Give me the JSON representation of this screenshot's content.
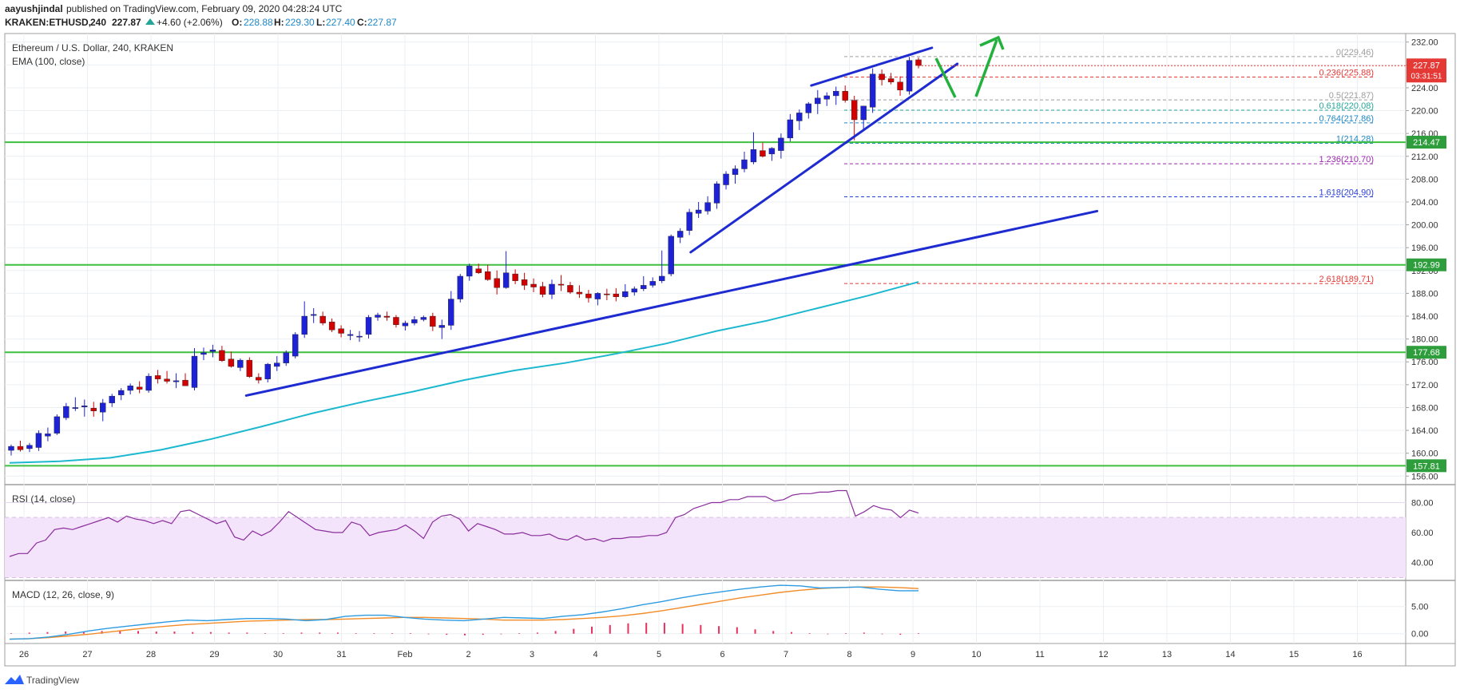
{
  "header": {
    "author": "aayushjindal",
    "published_text": "published on TradingView.com, February 09, 2020 04:28:24 UTC",
    "symbol": "KRAKEN:ETHUSD,",
    "timeframe": "240",
    "price": "227.87",
    "change": "+4.60 (+2.06%)",
    "o_label": "O:",
    "o_value": "228.88",
    "h_label": "H:",
    "h_value": "229.30",
    "l_label": "L:",
    "l_value": "227.40",
    "c_label": "C:",
    "c_value": "227.87"
  },
  "legend": {
    "title": "Ethereum / U.S. Dollar, 240, KRAKEN",
    "ema": "EMA (100, close)",
    "rsi": "RSI (14, close)",
    "macd": "MACD (12, 26, close, 9)"
  },
  "footer": {
    "brand": "TradingView"
  },
  "colors": {
    "up": "#1e22d6",
    "down": "#d40000",
    "ema": "#1bb8cf",
    "support": "#3fbf3f",
    "trend": "#1e2bd1",
    "arrow": "#20b03a",
    "rsi": "#8a2e9c",
    "rsi_band": "#f2e0fa",
    "macd": "#2e9be0",
    "signal": "#f28c28",
    "hist": "#e8305e"
  },
  "chart_data": [
    {
      "type": "candlestick",
      "title": "Ethereum / U.S. Dollar, 240, KRAKEN",
      "x_tick_labels": [
        "26",
        "27",
        "28",
        "29",
        "30",
        "31",
        "Feb",
        "2",
        "3",
        "4",
        "5",
        "6",
        "7",
        "8",
        "9",
        "10",
        "11",
        "12",
        "13",
        "14",
        "15",
        "16"
      ],
      "y_tick_labels": [
        "156.00",
        "160.00",
        "164.00",
        "168.00",
        "172.00",
        "176.00",
        "180.00",
        "184.00",
        "188.00",
        "192.00",
        "196.00",
        "200.00",
        "204.00",
        "208.00",
        "212.00",
        "216.00",
        "220.00",
        "224.00",
        "228.00",
        "232.00"
      ],
      "ylim": [
        154.5,
        233.5
      ],
      "candles_ohlc": [
        [
          160.5,
          161.5,
          159.6,
          161.2
        ],
        [
          161.2,
          162.2,
          160.3,
          160.6
        ],
        [
          160.8,
          161.8,
          160.2,
          161.4
        ],
        [
          161.0,
          164.0,
          160.4,
          163.5
        ],
        [
          163.0,
          164.5,
          162.1,
          163.4
        ],
        [
          163.5,
          166.8,
          163.2,
          166.4
        ],
        [
          166.2,
          168.8,
          165.8,
          168.2
        ],
        [
          168.0,
          169.8,
          167.4,
          168.0
        ],
        [
          168.1,
          169.4,
          166.4,
          168.3
        ],
        [
          167.9,
          169.0,
          166.4,
          167.4
        ],
        [
          167.2,
          169.5,
          165.6,
          168.8
        ],
        [
          168.8,
          170.4,
          168.1,
          170.0
        ],
        [
          170.2,
          171.4,
          169.3,
          171.0
        ],
        [
          171.0,
          172.2,
          170.3,
          171.8
        ],
        [
          171.6,
          172.6,
          170.5,
          171.2
        ],
        [
          171.0,
          174.0,
          170.6,
          173.5
        ],
        [
          173.6,
          174.6,
          172.2,
          173.0
        ],
        [
          173.0,
          174.4,
          172.2,
          172.6
        ],
        [
          172.5,
          174.0,
          171.4,
          172.7
        ],
        [
          172.8,
          174.0,
          171.8,
          171.8
        ],
        [
          171.5,
          178.4,
          171.0,
          177.0
        ],
        [
          177.3,
          178.5,
          176.3,
          177.6
        ],
        [
          177.8,
          179.0,
          176.8,
          178.1
        ],
        [
          178.0,
          178.8,
          176.0,
          176.2
        ],
        [
          176.5,
          177.8,
          175.0,
          175.2
        ],
        [
          175.0,
          176.6,
          174.4,
          176.3
        ],
        [
          176.3,
          176.8,
          173.2,
          173.4
        ],
        [
          173.3,
          174.0,
          172.2,
          172.8
        ],
        [
          173.0,
          175.8,
          172.4,
          175.6
        ],
        [
          175.2,
          177.0,
          174.4,
          175.8
        ],
        [
          175.8,
          178.0,
          175.3,
          177.6
        ],
        [
          177.0,
          181.2,
          176.6,
          180.8
        ],
        [
          180.8,
          186.6,
          180.2,
          184.0
        ],
        [
          184.2,
          185.4,
          182.8,
          184.3
        ],
        [
          184.0,
          184.8,
          182.4,
          182.8
        ],
        [
          183.0,
          183.6,
          181.2,
          181.6
        ],
        [
          181.8,
          182.4,
          180.3,
          181.0
        ],
        [
          180.6,
          181.6,
          179.8,
          180.8
        ],
        [
          180.4,
          181.4,
          179.5,
          180.5
        ],
        [
          180.8,
          184.2,
          180.1,
          183.8
        ],
        [
          183.8,
          184.6,
          183.2,
          184.2
        ],
        [
          184.0,
          184.8,
          183.2,
          183.8
        ],
        [
          183.8,
          184.2,
          182.0,
          182.5
        ],
        [
          182.3,
          183.2,
          181.5,
          182.8
        ],
        [
          182.8,
          184.0,
          182.4,
          183.4
        ],
        [
          183.4,
          184.1,
          183.1,
          183.8
        ],
        [
          184.0,
          184.6,
          181.4,
          182.2
        ],
        [
          182.0,
          183.4,
          180.0,
          182.4
        ],
        [
          182.4,
          188.4,
          181.6,
          187.0
        ],
        [
          187.0,
          191.4,
          186.4,
          191.0
        ],
        [
          191.0,
          193.2,
          190.2,
          192.8
        ],
        [
          192.3,
          193.2,
          191.4,
          191.6
        ],
        [
          191.8,
          193.0,
          190.2,
          190.4
        ],
        [
          190.6,
          192.0,
          187.8,
          189.0
        ],
        [
          189.0,
          195.4,
          188.8,
          191.6
        ],
        [
          191.4,
          192.2,
          189.6,
          190.2
        ],
        [
          190.4,
          191.6,
          188.6,
          189.4
        ],
        [
          189.6,
          190.6,
          188.2,
          189.1
        ],
        [
          189.2,
          190.0,
          187.3,
          187.8
        ],
        [
          187.8,
          190.4,
          187.0,
          189.6
        ],
        [
          189.6,
          191.2,
          188.4,
          189.5
        ],
        [
          189.4,
          190.0,
          187.9,
          188.2
        ],
        [
          188.2,
          189.4,
          187.2,
          187.9
        ],
        [
          187.9,
          188.6,
          186.4,
          187.2
        ],
        [
          187.0,
          188.2,
          185.9,
          188.0
        ],
        [
          187.9,
          188.8,
          186.8,
          187.8
        ],
        [
          187.9,
          188.9,
          186.6,
          187.4
        ],
        [
          187.4,
          189.6,
          187.2,
          188.3
        ],
        [
          188.2,
          189.2,
          187.6,
          188.8
        ],
        [
          188.8,
          191.0,
          188.4,
          189.4
        ],
        [
          189.4,
          190.8,
          189.0,
          190.1
        ],
        [
          190.2,
          195.5,
          189.8,
          191.0
        ],
        [
          191.4,
          198.3,
          191.0,
          198.0
        ],
        [
          197.8,
          199.4,
          196.8,
          198.9
        ],
        [
          199.0,
          202.8,
          198.2,
          202.2
        ],
        [
          202.0,
          204.0,
          201.2,
          202.6
        ],
        [
          202.4,
          205.0,
          201.8,
          203.9
        ],
        [
          203.8,
          207.6,
          202.8,
          207.2
        ],
        [
          207.0,
          209.4,
          206.2,
          208.9
        ],
        [
          208.8,
          210.4,
          207.2,
          209.8
        ],
        [
          209.8,
          212.8,
          209.2,
          211.4
        ],
        [
          211.0,
          216.2,
          210.6,
          213.2
        ],
        [
          213.0,
          214.4,
          211.8,
          212.0
        ],
        [
          212.4,
          213.6,
          211.2,
          213.4
        ],
        [
          213.0,
          216.0,
          211.6,
          215.2
        ],
        [
          215.2,
          219.4,
          214.6,
          218.4
        ],
        [
          218.2,
          220.2,
          216.6,
          219.6
        ],
        [
          219.6,
          221.5,
          218.6,
          221.2
        ],
        [
          221.2,
          223.6,
          219.4,
          222.2
        ],
        [
          222.0,
          223.2,
          220.8,
          222.6
        ],
        [
          222.6,
          224.2,
          221.0,
          223.4
        ],
        [
          223.4,
          224.4,
          221.4,
          221.8
        ],
        [
          221.8,
          222.6,
          214.8,
          218.4
        ],
        [
          218.4,
          220.8,
          216.4,
          220.8
        ],
        [
          220.6,
          227.4,
          219.6,
          226.4
        ],
        [
          226.4,
          227.2,
          224.4,
          225.4
        ],
        [
          225.6,
          226.6,
          224.6,
          225.0
        ],
        [
          225.0,
          226.0,
          222.6,
          223.6
        ],
        [
          223.4,
          229.4,
          222.8,
          228.8
        ],
        [
          228.9,
          229.3,
          227.4,
          227.9
        ]
      ],
      "ema_100": [
        158.3,
        158.6,
        159.2,
        160.6,
        162.5,
        164.7,
        167.0,
        169.0,
        170.8,
        172.8,
        174.5,
        175.8,
        177.4,
        179.2,
        181.4,
        183.2,
        185.4,
        187.6,
        190.0
      ],
      "horizontal_levels": [
        {
          "value": 214.47,
          "label": "214.47"
        },
        {
          "value": 192.99,
          "label": "192.99"
        },
        {
          "value": 177.68,
          "label": "177.68"
        },
        {
          "value": 157.81,
          "label": "157.81"
        }
      ],
      "fibonacci": [
        {
          "ratio": "0",
          "price": "229.46",
          "text": "0(229.46)"
        },
        {
          "ratio": "0.236",
          "price": "225.88",
          "text": "0.236(225.88)"
        },
        {
          "ratio": "0.5",
          "price": "221.87",
          "text": "0.5(221.87)"
        },
        {
          "ratio": "0.618",
          "price": "220.08",
          "text": "0.618(220.08)"
        },
        {
          "ratio": "0.764",
          "price": "217.86",
          "text": "0.764(217.86)"
        },
        {
          "ratio": "1",
          "price": "214.28",
          "text": "1(214.28)"
        },
        {
          "ratio": "1.236",
          "price": "210.70",
          "text": "1.236(210.70)"
        },
        {
          "ratio": "1.618",
          "price": "204.90",
          "text": "1.618(204.90)"
        },
        {
          "ratio": "2.618",
          "price": "189.71",
          "text": "2.618(189.71)"
        }
      ],
      "trendlines": [
        {
          "name": "major-support",
          "from": [
            "Jan 29.5",
            170.1
          ],
          "to": [
            "Feb 11.9",
            202.4
          ]
        },
        {
          "name": "rising-support",
          "from": [
            "Feb 5.5",
            195.2
          ],
          "to": [
            "Feb 9.7",
            228.2
          ]
        },
        {
          "name": "rising-resistance",
          "from": [
            "Feb 7.4",
            224.4
          ],
          "to": [
            "Feb 9.3",
            231.0
          ]
        }
      ],
      "last_price": "227.87",
      "countdown": "03:31:51"
    },
    {
      "type": "line",
      "title": "RSI (14, close)",
      "y_tick_labels": [
        "40.00",
        "60.00",
        "80.00"
      ],
      "ylim": [
        28,
        92
      ],
      "band": [
        30,
        70
      ],
      "values": [
        44,
        46,
        46,
        53,
        55,
        62,
        63,
        62,
        64,
        66,
        68,
        70,
        67,
        71,
        69,
        68,
        66,
        68,
        66,
        74,
        75,
        72,
        69,
        66,
        68,
        57,
        55,
        61,
        58,
        61,
        67,
        74,
        70,
        66,
        62,
        61,
        60,
        60,
        67,
        65,
        58,
        60,
        61,
        62,
        65,
        61,
        56,
        67,
        71,
        72,
        69,
        61,
        66,
        64,
        62,
        59,
        59,
        60,
        58,
        58,
        59,
        56,
        55,
        58,
        55,
        56,
        54,
        56,
        56,
        57,
        57,
        58,
        58,
        60,
        70,
        72,
        76,
        78,
        80,
        80,
        82,
        82,
        84,
        84,
        84,
        81,
        82,
        85,
        86,
        86,
        87,
        87,
        88,
        88,
        71,
        74,
        78,
        76,
        75,
        70,
        75,
        73
      ]
    },
    {
      "type": "line",
      "title": "MACD (12, 26, close, 9)",
      "y_tick_labels": [
        "0.00",
        "5.00"
      ],
      "ylim": [
        -1.8,
        9.8
      ],
      "macd": [
        -1.0,
        -0.9,
        -0.6,
        -0.1,
        0.5,
        1.0,
        1.4,
        1.8,
        2.2,
        2.5,
        2.4,
        2.6,
        2.8,
        2.8,
        2.7,
        2.4,
        2.6,
        3.2,
        3.4,
        3.4,
        3.0,
        2.7,
        2.5,
        2.4,
        2.7,
        3.0,
        2.9,
        2.8,
        3.2,
        3.5,
        4.0,
        4.6,
        5.3,
        5.9,
        6.6,
        7.2,
        7.7,
        8.2,
        8.6,
        8.9,
        8.8,
        8.4,
        8.5,
        8.6,
        8.2,
        7.9,
        7.9
      ],
      "signal": [
        -1.0,
        -0.9,
        -0.7,
        -0.4,
        -0.1,
        0.3,
        0.7,
        1.1,
        1.4,
        1.7,
        1.9,
        2.1,
        2.3,
        2.4,
        2.5,
        2.6,
        2.6,
        2.7,
        2.8,
        2.9,
        3.0,
        3.0,
        2.9,
        2.8,
        2.7,
        2.5,
        2.5,
        2.5,
        2.6,
        2.8,
        3.0,
        3.3,
        3.7,
        4.2,
        4.8,
        5.4,
        6.0,
        6.6,
        7.1,
        7.6,
        8.0,
        8.3,
        8.5,
        8.6,
        8.6,
        8.5,
        8.3
      ],
      "histogram": [
        0.1,
        0.2,
        0.3,
        0.4,
        0.4,
        0.5,
        0.5,
        0.5,
        0.4,
        0.4,
        0.3,
        0.3,
        0.2,
        0.2,
        0.1,
        0.1,
        0.2,
        0.2,
        0.2,
        0.1,
        0.1,
        0.1,
        0.1,
        -0.1,
        -0.2,
        -0.3,
        -0.2,
        -0.1,
        0.1,
        0.2,
        0.5,
        0.9,
        1.3,
        1.6,
        1.9,
        2.0,
        2.0,
        1.8,
        1.6,
        1.4,
        1.2,
        0.8,
        0.5,
        0.3,
        0.1,
        -0.1,
        0.1,
        0.2,
        -0.1,
        -0.2,
        0.1
      ]
    }
  ]
}
